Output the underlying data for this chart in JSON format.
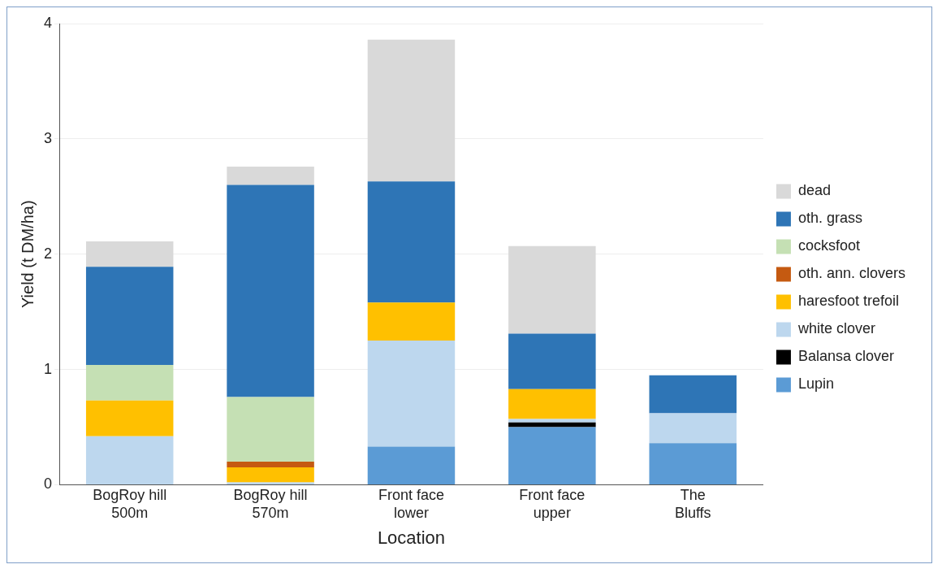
{
  "chart_data": {
    "type": "bar",
    "stacked": true,
    "xlabel": "Location",
    "ylabel": "Yield (t DM/ha)",
    "categories": [
      "BogRoy hill 500m",
      "BogRoy hill 570m",
      "Front face lower",
      "Front face upper",
      "The Bluffs"
    ],
    "series": [
      {
        "name": "Lupin",
        "color": "#5b9bd5",
        "values": [
          0,
          0,
          0.33,
          0.5,
          0.36
        ]
      },
      {
        "name": "Balansa clover",
        "color": "#000000",
        "values": [
          0,
          0,
          0,
          0.04,
          0
        ]
      },
      {
        "name": "white clover",
        "color": "#bdd7ee",
        "values": [
          0.42,
          0.02,
          0.92,
          0.03,
          0.26
        ]
      },
      {
        "name": "haresfoot trefoil",
        "color": "#ffc000",
        "values": [
          0.31,
          0.13,
          0.33,
          0.26,
          0
        ]
      },
      {
        "name": "oth. ann. clovers",
        "color": "#c55a11",
        "values": [
          0,
          0.05,
          0,
          0,
          0
        ]
      },
      {
        "name": "cocksfoot",
        "color": "#c5e0b4",
        "values": [
          0.31,
          0.56,
          0,
          0,
          null
        ]
      },
      {
        "name": "oth. grass",
        "color": "#2e75b6",
        "values": [
          0.85,
          1.84,
          1.05,
          0.48,
          0.33
        ]
      },
      {
        "name": "dead",
        "color": "#d9d9d9",
        "values": [
          0.22,
          0.16,
          1.23,
          0.76,
          0
        ]
      }
    ],
    "ylim": [
      0,
      4
    ],
    "yticks": [
      0,
      1,
      2,
      3,
      4
    ],
    "grid": "y",
    "legend": "right"
  }
}
